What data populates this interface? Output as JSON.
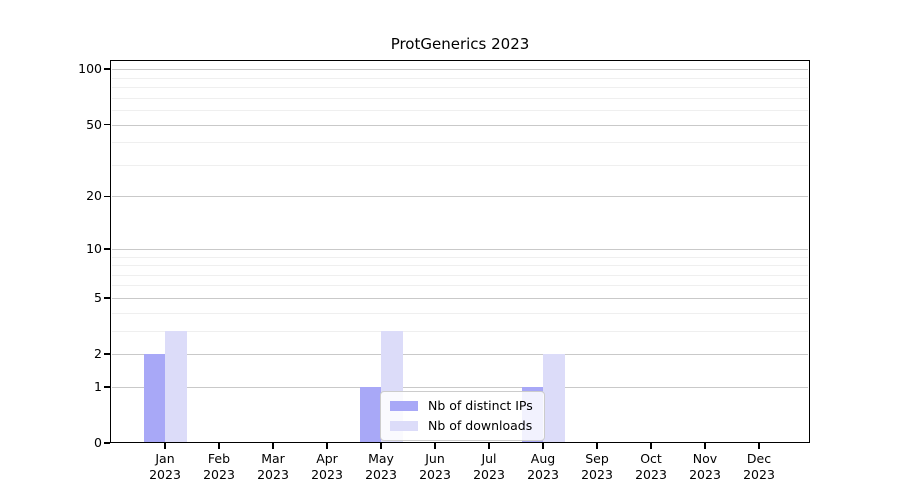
{
  "chart_data": {
    "type": "bar",
    "title": "ProtGenerics 2023",
    "categories": [
      "Jan",
      "Feb",
      "Mar",
      "Apr",
      "May",
      "Jun",
      "Jul",
      "Aug",
      "Sep",
      "Oct",
      "Nov",
      "Dec"
    ],
    "year_label": "2023",
    "series": [
      {
        "name": "Nb of distinct IPs",
        "color": "#a8a8f7",
        "values": [
          2,
          0,
          0,
          0,
          1,
          0,
          0,
          1,
          0,
          0,
          0,
          0
        ]
      },
      {
        "name": "Nb of downloads",
        "color": "#dcdcf9",
        "values": [
          3,
          0,
          0,
          0,
          3,
          0,
          0,
          2,
          0,
          0,
          0,
          0
        ]
      }
    ],
    "y_axis": {
      "scale": "log1p",
      "major_ticks": [
        0,
        1,
        2,
        5,
        10,
        20,
        50,
        100
      ],
      "minor_ticks": [
        3,
        4,
        6,
        7,
        8,
        9,
        30,
        40,
        60,
        70,
        80,
        90
      ],
      "range_top": 112
    },
    "x_axis": {
      "tick_label_lines": 2
    },
    "grid": {
      "major_color": "#c9c9c9",
      "minor_color": "#efefef"
    },
    "legend": {
      "position": "lower center"
    },
    "axis_color": "#000000",
    "background_color": "#ffffff"
  }
}
